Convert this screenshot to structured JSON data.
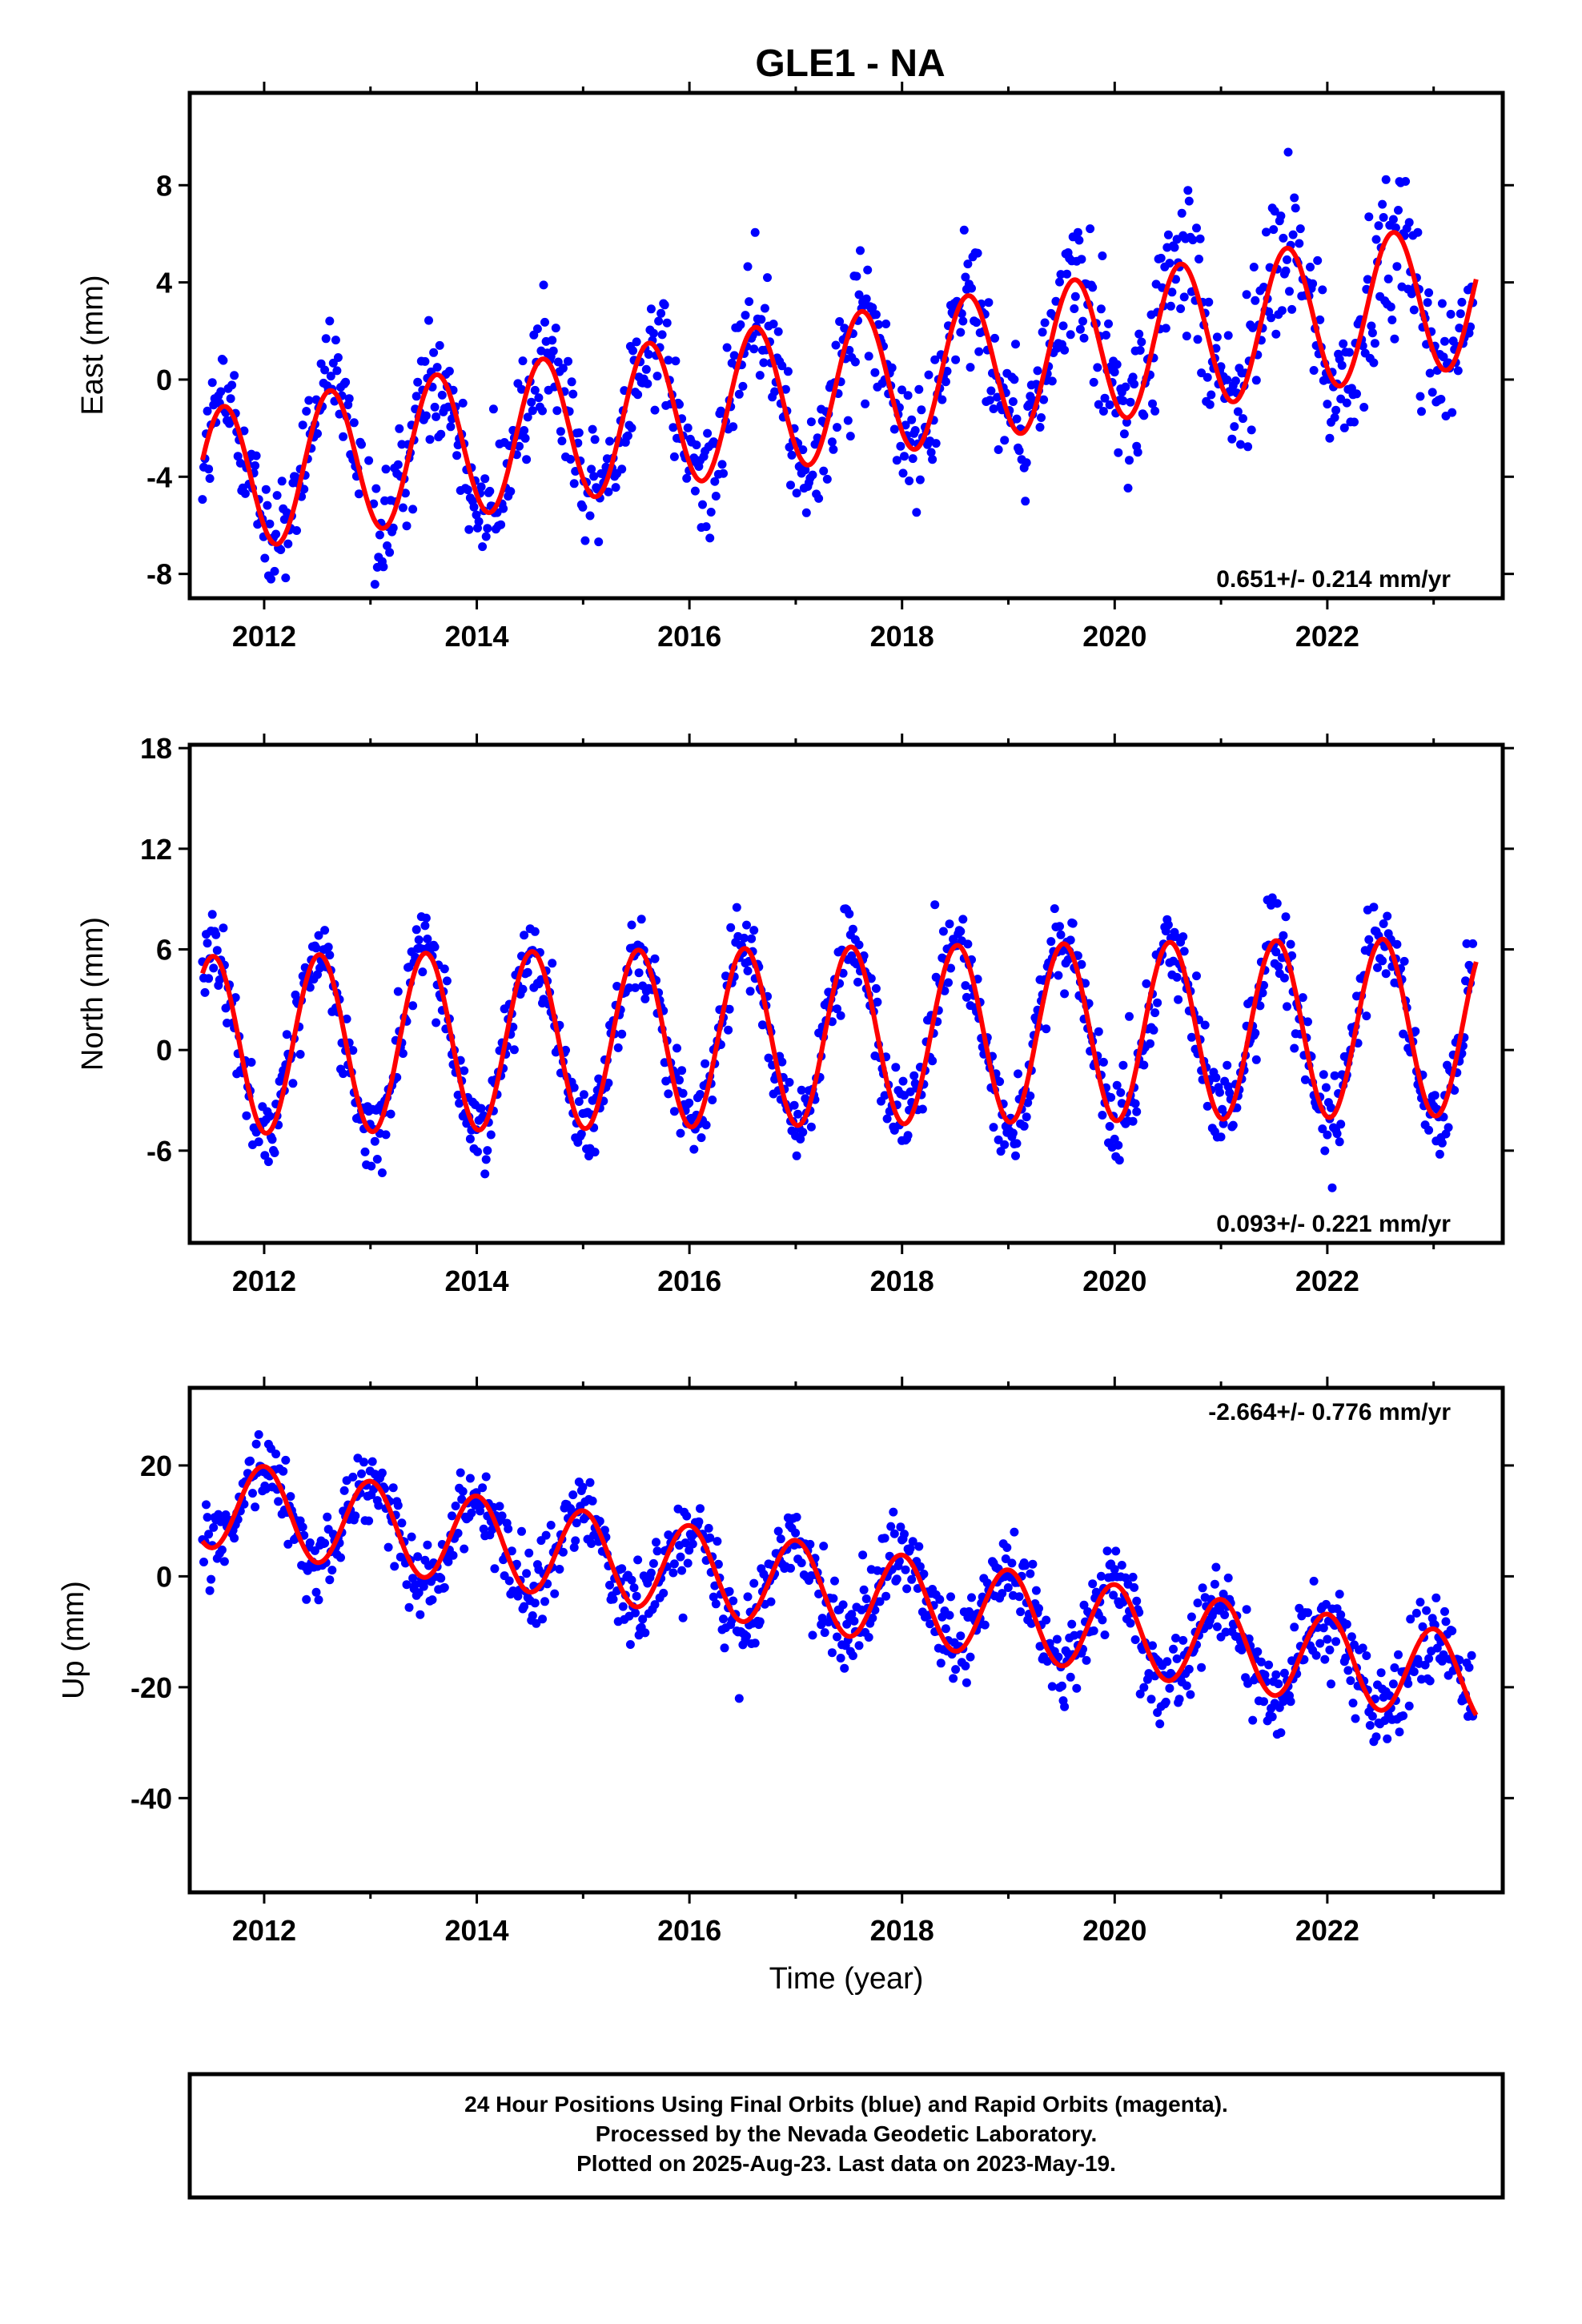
{
  "title": "GLE1 - NA",
  "xlabel": "Time (year)",
  "x_ticks": [
    "2012",
    "2014",
    "2016",
    "2018",
    "2020",
    "2022"
  ],
  "colors": {
    "points": "#0000ff",
    "fit": "#ff0000",
    "frame": "#000000"
  },
  "chart_data": [
    {
      "type": "scatter",
      "component": "east",
      "ylabel": "East (mm)",
      "xlim": [
        2011.3,
        2023.65
      ],
      "ylim": [
        -9.0,
        11.8
      ],
      "y_ticks": [
        "8",
        "4",
        "0",
        "-4",
        "-8"
      ],
      "y_tick_values": [
        8,
        4,
        0,
        -4,
        -8
      ],
      "rate_label": "0.651+/- 0.214 mm/yr",
      "rate_position": "bottom-right",
      "model": {
        "ref_year": 2017.0,
        "offset": -0.6,
        "trend": 0.651,
        "amplitude": 3.0,
        "phase_peak_frac": 0.62,
        "noise": 1.7
      },
      "series": [
        {
          "name": "Final Orbits (blue)",
          "x": [
            2011.5,
            2011.7,
            2012.0,
            2012.3,
            2012.6,
            2013.0,
            2013.3,
            2013.6,
            2014.0,
            2014.3,
            2014.6,
            2015.0,
            2015.3,
            2015.6,
            2016.0,
            2016.3,
            2016.6,
            2017.0,
            2017.3,
            2017.6,
            2018.0,
            2018.3,
            2018.6,
            2019.0,
            2019.3,
            2019.6,
            2020.0,
            2020.3,
            2020.6,
            2021.0,
            2021.3,
            2021.6,
            2022.0,
            2022.3,
            2022.6,
            2023.0,
            2023.3
          ],
          "y": [
            -2.0,
            -0.5,
            -6.3,
            -3.0,
            0.3,
            -5.5,
            -2.0,
            0.9,
            -5.0,
            -1.5,
            1.5,
            -4.3,
            -0.8,
            2.2,
            -3.7,
            -0.2,
            2.8,
            -3.0,
            0.4,
            3.4,
            -2.4,
            0.9,
            4.1,
            -1.8,
            1.6,
            4.7,
            -1.2,
            2.2,
            5.3,
            -0.6,
            2.9,
            6.0,
            0.2,
            3.5,
            6.6,
            0.8,
            4.6
          ]
        }
      ]
    },
    {
      "type": "scatter",
      "component": "north",
      "ylabel": "North (mm)",
      "xlim": [
        2011.3,
        2023.65
      ],
      "ylim": [
        -11.5,
        18.2
      ],
      "y_ticks": [
        "18",
        "12",
        "6",
        "0",
        "-6"
      ],
      "y_tick_values": [
        18,
        12,
        6,
        0,
        -6
      ],
      "rate_label": "0.093+/- 0.221 mm/yr",
      "rate_position": "bottom-right",
      "model": {
        "ref_year": 2017.0,
        "offset": 0.8,
        "trend": 0.093,
        "amplitude": 5.3,
        "phase_peak_frac": 0.52,
        "noise": 1.6
      },
      "series": [
        {
          "name": "Final Orbits (blue)",
          "x": [
            2011.5,
            2012.0,
            2012.5,
            2013.0,
            2013.5,
            2014.0,
            2014.5,
            2015.0,
            2015.5,
            2016.0,
            2016.5,
            2017.0,
            2017.5,
            2018.0,
            2018.5,
            2019.0,
            2019.5,
            2020.0,
            2020.5,
            2021.0,
            2021.5,
            2022.0,
            2022.5,
            2023.0,
            2023.3
          ],
          "y": [
            5.5,
            -4.6,
            5.9,
            -4.8,
            6.0,
            -4.6,
            6.0,
            -4.4,
            6.1,
            -4.3,
            6.2,
            -4.2,
            6.3,
            -4.2,
            6.4,
            -4.0,
            6.5,
            -4.0,
            6.5,
            -3.8,
            6.6,
            -3.8,
            6.7,
            -3.6,
            4.0
          ]
        }
      ]
    },
    {
      "type": "scatter",
      "component": "up",
      "ylabel": "Up (mm)",
      "xlim": [
        2011.3,
        2023.65
      ],
      "ylim": [
        -57,
        34
      ],
      "y_ticks": [
        "20",
        "0",
        "-20",
        "-40"
      ],
      "y_tick_values": [
        20,
        0,
        -20,
        -40
      ],
      "rate_label": "-2.664+/- 0.776 mm/yr",
      "rate_position": "top-right",
      "model": {
        "ref_year": 2017.0,
        "offset": -1.5,
        "trend": -2.664,
        "amplitude": 8.0,
        "phase_peak_frac": 0.0,
        "noise": 4.5
      },
      "series": [
        {
          "name": "Final Orbits (blue)",
          "x": [
            2011.5,
            2012.0,
            2012.5,
            2013.0,
            2013.5,
            2014.0,
            2014.5,
            2015.0,
            2015.5,
            2016.0,
            2016.5,
            2017.0,
            2017.5,
            2018.0,
            2018.5,
            2019.0,
            2019.5,
            2020.0,
            2020.5,
            2021.0,
            2021.5,
            2022.0,
            2022.5,
            2023.0,
            2023.3
          ],
          "y": [
            6,
            20,
            4,
            17,
            1,
            14,
            -2,
            12,
            -4,
            9,
            -7,
            6,
            -10,
            4,
            -12,
            1,
            -15,
            -2,
            -18,
            -4,
            -20,
            -7,
            -23,
            -10,
            -25
          ]
        }
      ]
    }
  ],
  "footer": {
    "line1": "24 Hour Positions Using Final Orbits (blue) and Rapid Orbits (magenta).",
    "line2": "Processed by the Nevada Geodetic Laboratory.",
    "line3": "Plotted on 2025-Aug-23. Last data on 2023-May-19."
  }
}
